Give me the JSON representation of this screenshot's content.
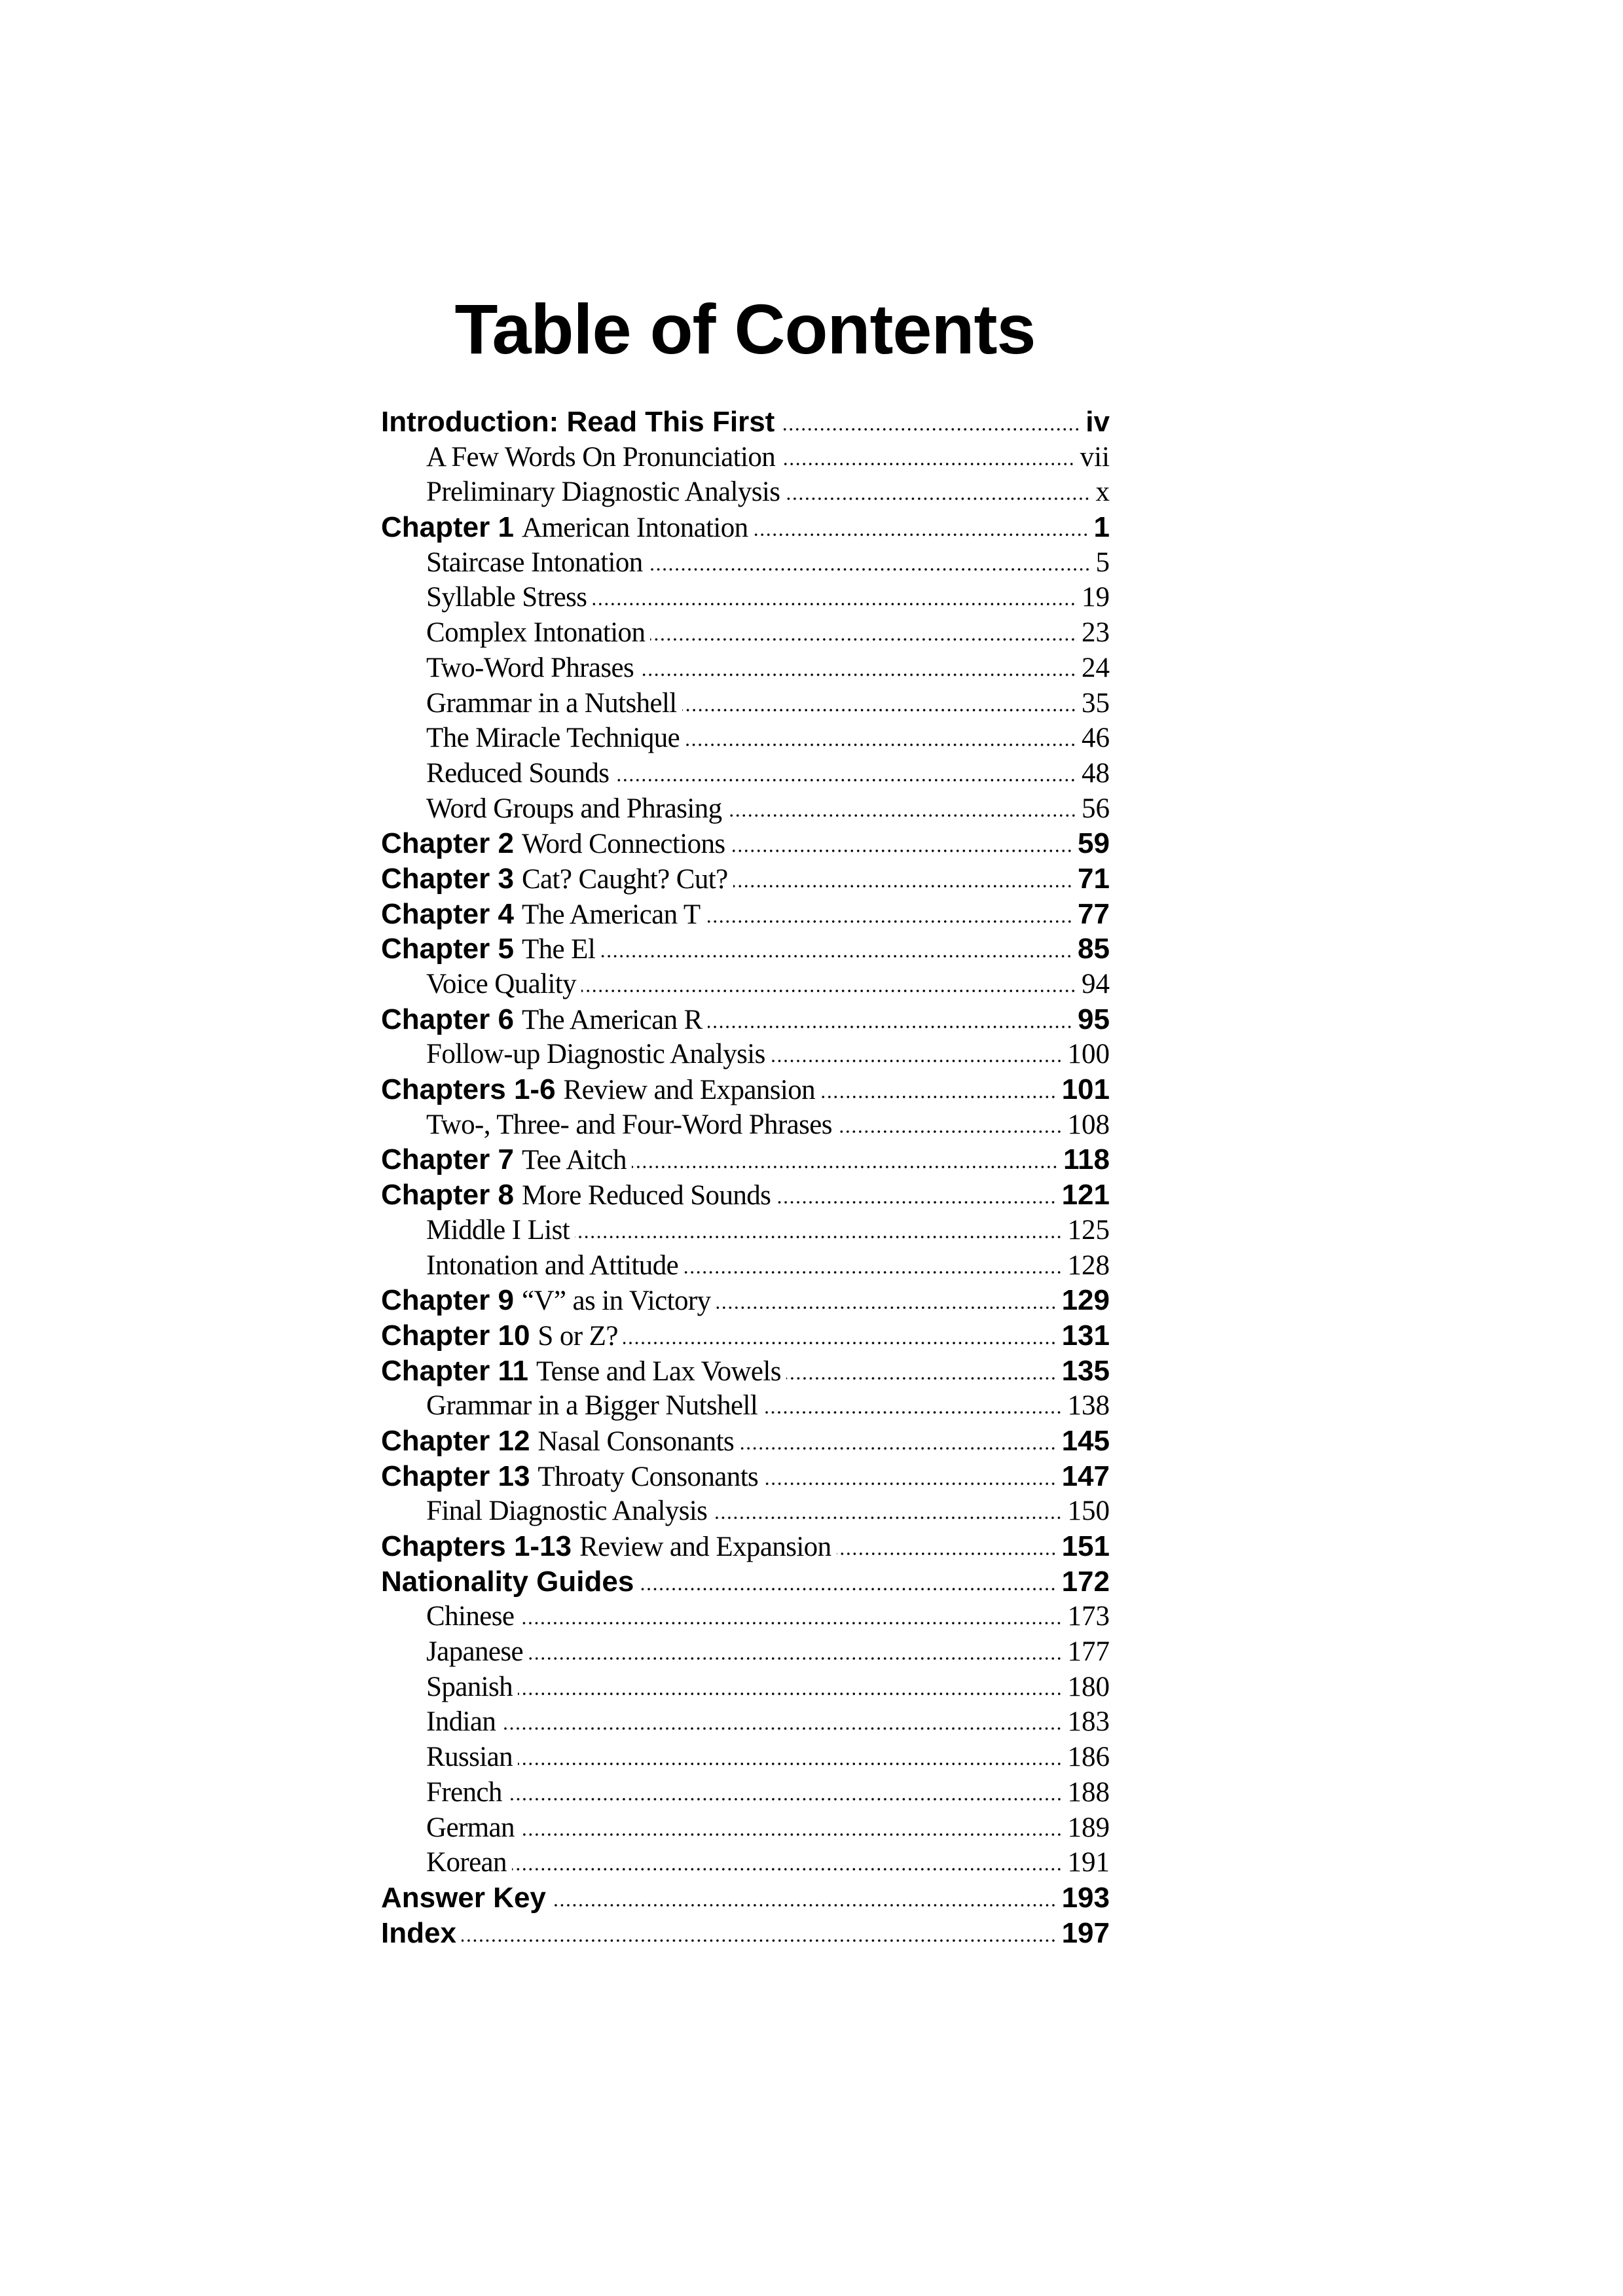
{
  "title": "Table of Contents",
  "entries": [
    {
      "label": "Introduction: Read This First",
      "text": "",
      "page": "iv",
      "level": 0
    },
    {
      "label": "",
      "text": "A Few Words On Pronunciation",
      "page": "vii",
      "level": 1
    },
    {
      "label": "",
      "text": "Preliminary Diagnostic Analysis",
      "page": "x",
      "level": 1
    },
    {
      "label": "Chapter 1",
      "text": "American Intonation",
      "page": "1",
      "level": 0
    },
    {
      "label": "",
      "text": "Staircase Intonation",
      "page": "5",
      "level": 1
    },
    {
      "label": "",
      "text": "Syllable Stress",
      "page": "19",
      "level": 1
    },
    {
      "label": "",
      "text": "Complex Intonation",
      "page": "23",
      "level": 1
    },
    {
      "label": "",
      "text": "Two-Word Phrases",
      "page": "24",
      "level": 1
    },
    {
      "label": "",
      "text": "Grammar in a Nutshell",
      "page": "35",
      "level": 1
    },
    {
      "label": "",
      "text": "The Miracle Technique",
      "page": "46",
      "level": 1
    },
    {
      "label": "",
      "text": "Reduced Sounds",
      "page": "48",
      "level": 1
    },
    {
      "label": "",
      "text": "Word Groups and Phrasing",
      "page": "56",
      "level": 1
    },
    {
      "label": "Chapter 2",
      "text": "Word Connections",
      "page": "59",
      "level": 0
    },
    {
      "label": "Chapter 3",
      "text": "Cat? Caught? Cut?",
      "page": "71",
      "level": 0
    },
    {
      "label": "Chapter 4",
      "text": "The American T",
      "page": "77",
      "level": 0
    },
    {
      "label": "Chapter 5",
      "text": "The El",
      "page": "85",
      "level": 0
    },
    {
      "label": "",
      "text": "Voice Quality",
      "page": "94",
      "level": 1
    },
    {
      "label": "Chapter 6",
      "text": "The American R",
      "page": "95",
      "level": 0
    },
    {
      "label": "",
      "text": "Follow-up Diagnostic Analysis",
      "page": "100",
      "level": 1
    },
    {
      "label": "Chapters 1-6",
      "text": "Review and Expansion",
      "page": "101",
      "level": 0
    },
    {
      "label": "",
      "text": "Two-, Three- and Four-Word Phrases",
      "page": "108",
      "level": 1
    },
    {
      "label": "Chapter 7",
      "text": "Tee Aitch",
      "page": "118",
      "level": 0
    },
    {
      "label": "Chapter 8",
      "text": "More Reduced Sounds",
      "page": "121",
      "level": 0
    },
    {
      "label": "",
      "text": "Middle I List",
      "page": "125",
      "level": 1
    },
    {
      "label": "",
      "text": "Intonation and Attitude",
      "page": "128",
      "level": 1
    },
    {
      "label": "Chapter 9",
      "text": "“V” as in Victory",
      "page": "129",
      "level": 0
    },
    {
      "label": "Chapter 10",
      "text": "S or Z?",
      "page": "131",
      "level": 0
    },
    {
      "label": "Chapter 11",
      "text": "Tense and Lax Vowels",
      "page": "135",
      "level": 0
    },
    {
      "label": "",
      "text": "Grammar in a Bigger Nutshell",
      "page": "138",
      "level": 1
    },
    {
      "label": "Chapter 12",
      "text": "Nasal Consonants",
      "page": "145",
      "level": 0
    },
    {
      "label": "Chapter 13",
      "text": "Throaty Consonants",
      "page": "147",
      "level": 0
    },
    {
      "label": "",
      "text": "Final Diagnostic Analysis",
      "page": "150",
      "level": 1
    },
    {
      "label": "Chapters 1-13",
      "text": "Review and Expansion",
      "page": "151",
      "level": 0
    },
    {
      "label": "Nationality Guides",
      "text": "",
      "page": "172",
      "level": 0
    },
    {
      "label": "",
      "text": "Chinese",
      "page": "173",
      "level": 1
    },
    {
      "label": "",
      "text": "Japanese",
      "page": "177",
      "level": 1
    },
    {
      "label": "",
      "text": "Spanish",
      "page": "180",
      "level": 1
    },
    {
      "label": "",
      "text": "Indian",
      "page": "183",
      "level": 1
    },
    {
      "label": "",
      "text": "Russian",
      "page": "186",
      "level": 1
    },
    {
      "label": "",
      "text": "French",
      "page": "188",
      "level": 1
    },
    {
      "label": "",
      "text": "German",
      "page": "189",
      "level": 1
    },
    {
      "label": "",
      "text": "Korean",
      "page": "191",
      "level": 1
    },
    {
      "label": "Answer Key",
      "text": "",
      "page": "193",
      "level": 0
    },
    {
      "label": "Index",
      "text": "",
      "page": "197",
      "level": 0
    }
  ]
}
